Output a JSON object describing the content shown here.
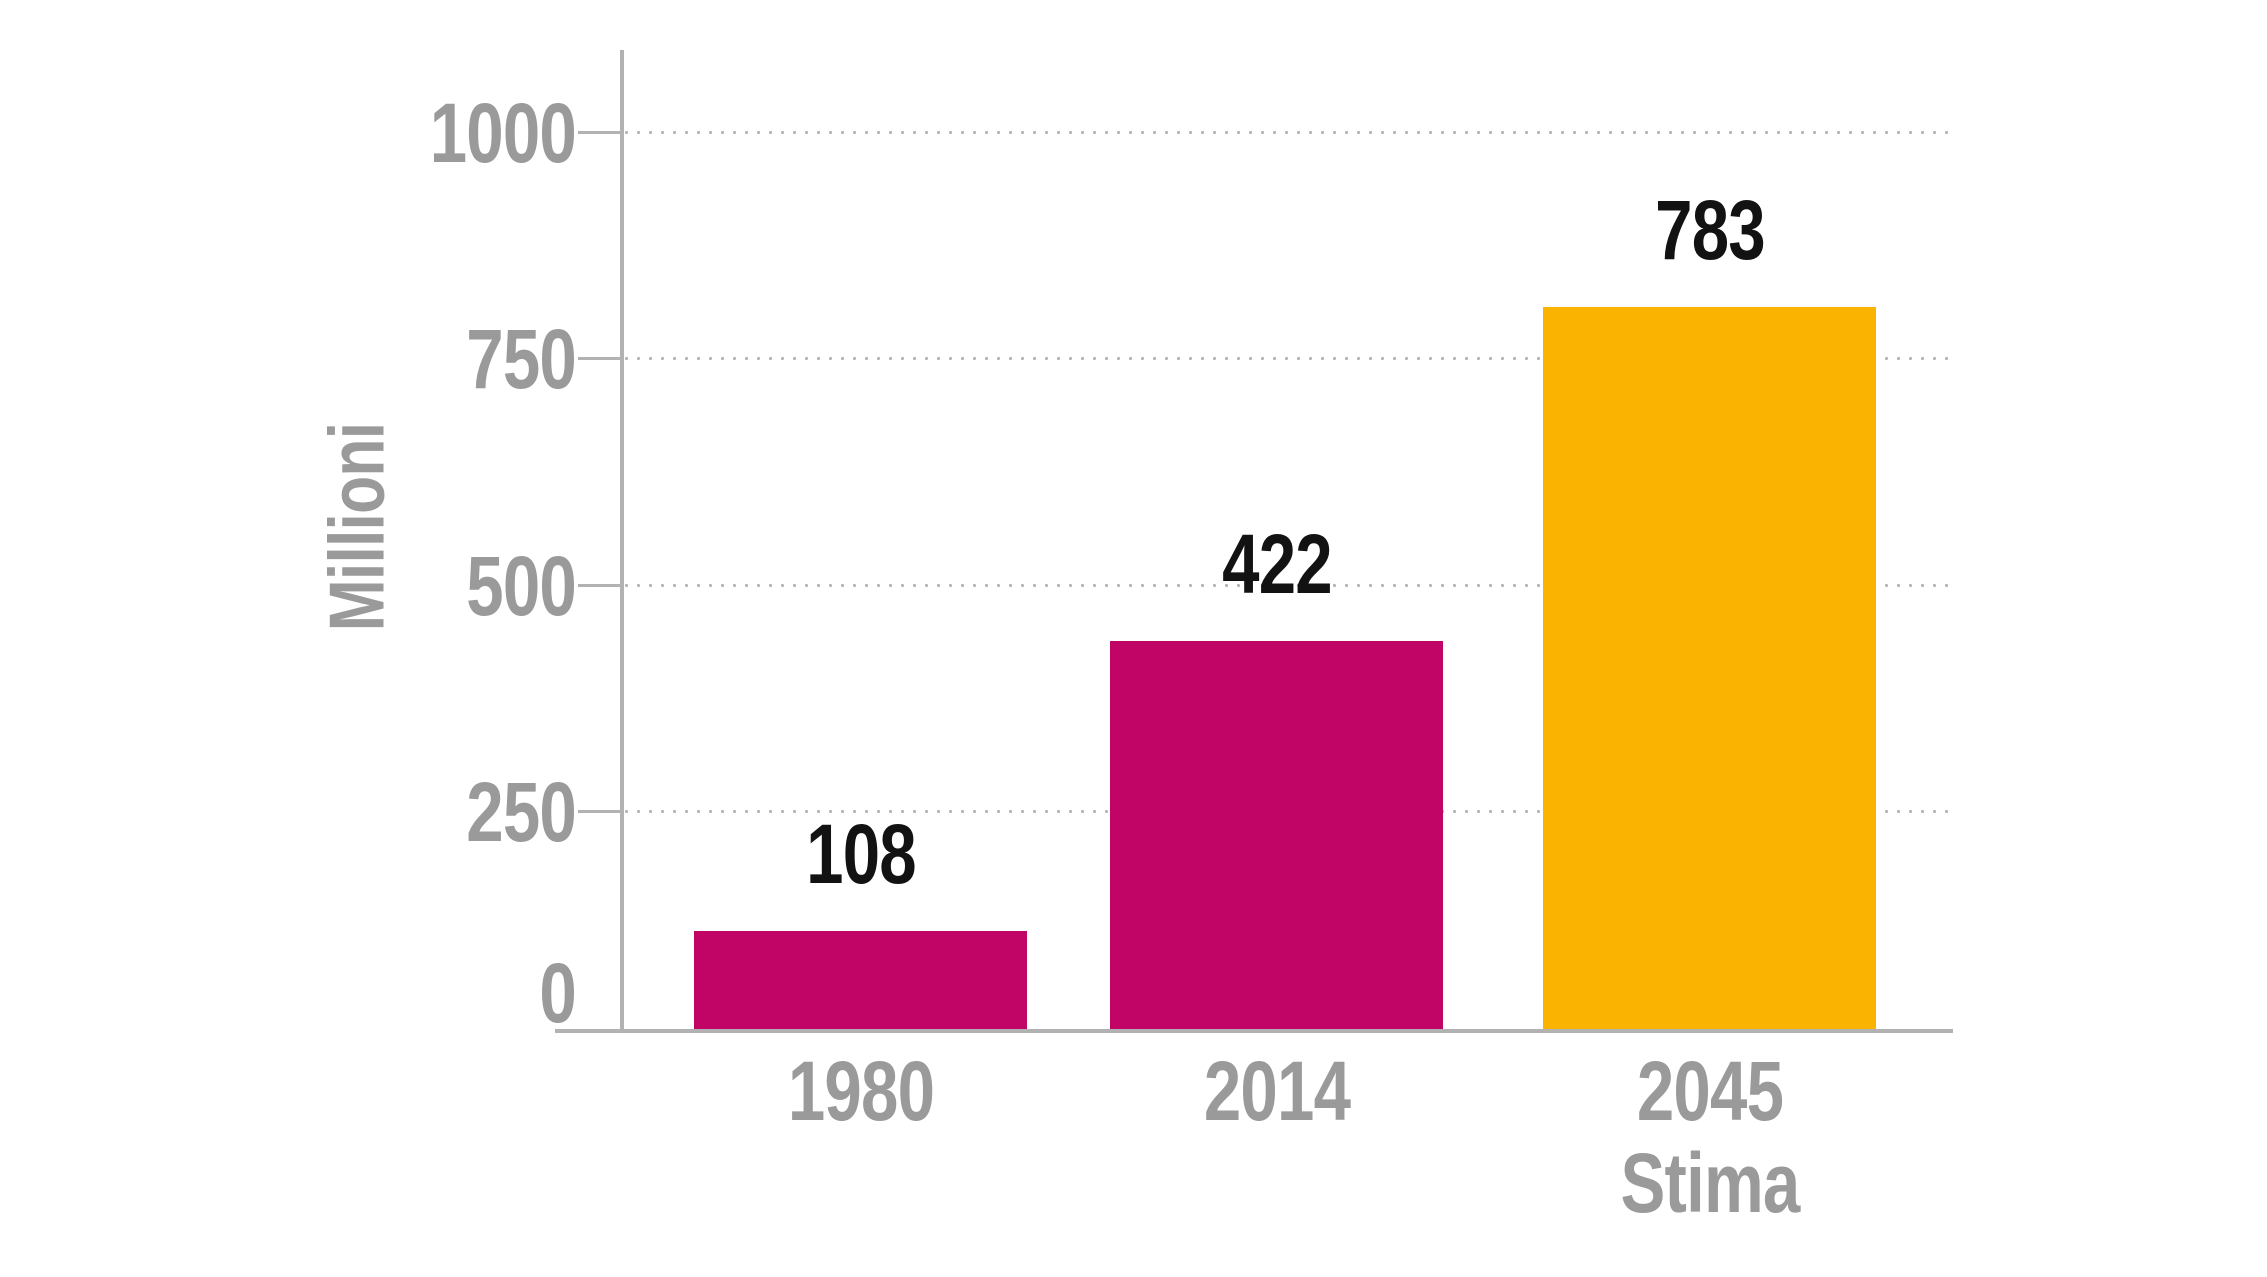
{
  "colors": {
    "background": "#ffffff",
    "bar_magenta": "#c00566",
    "bar_yellow": "#fbb301",
    "axis_gray": "#b2b2b2",
    "grid_dot_gray": "#b6b6b6",
    "label_gray": "#9a9a9a",
    "value_black": "#121212"
  },
  "chart_data": {
    "type": "bar",
    "title": "",
    "xlabel": "",
    "ylabel": "Millioni",
    "categories": [
      "1980",
      "2014",
      "2045 Stima"
    ],
    "category_lines": [
      [
        "1980"
      ],
      [
        "2014"
      ],
      [
        "2045",
        "Stima"
      ]
    ],
    "values": [
      108,
      422,
      783
    ],
    "data_labels": [
      "108",
      "422",
      "783"
    ],
    "bar_colors": [
      "#c00566",
      "#c00566",
      "#fbb301"
    ],
    "yticks": [
      {
        "value": 1000,
        "label": "1000"
      },
      {
        "value": 750,
        "label": "750"
      },
      {
        "value": 500,
        "label": "500"
      },
      {
        "value": 250,
        "label": "250"
      },
      {
        "value": 0,
        "label": "0"
      }
    ],
    "ylim": [
      0,
      1100
    ],
    "grid": "horizontal-dotted",
    "legend": "none"
  }
}
